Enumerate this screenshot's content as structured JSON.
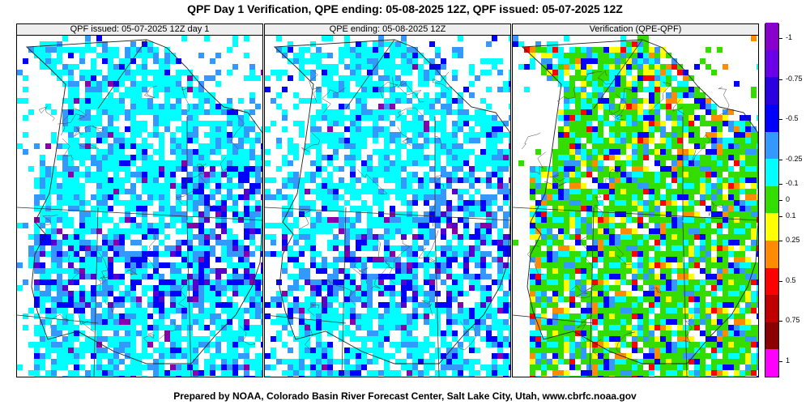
{
  "title": "QPF Day 1 Verification, QPE ending: 05-08-2025 12Z, QPF issued: 05-07-2025 12Z",
  "footer": "Prepared by NOAA, Colorado Basin River Forecast Center, Salt Lake City, Utah, www.cbrfc.noaa.gov",
  "panels": [
    {
      "id": "qpf",
      "title": "QPF issued: 05-07-2025 12Z day 1",
      "product": "qpf",
      "seed": 11
    },
    {
      "id": "qpe",
      "title": "QPE ending: 05-08-2025 12Z",
      "product": "qpe",
      "seed": 23
    },
    {
      "id": "diff",
      "title": "Verification (QPE-QPF)",
      "product": "diff",
      "seed": 37
    }
  ],
  "legend": {
    "colors": [
      "#ff00ff",
      "#8b0000",
      "#c00000",
      "#ff0000",
      "#ff8c00",
      "#ffff00",
      "#33dd00",
      "#00ffff",
      "#3399ff",
      "#0000ff",
      "#2a00e0",
      "#6a00e8",
      "#8800cc"
    ],
    "labels": [
      "1",
      "0.75",
      "0.5",
      "0.25",
      "0.1",
      "0",
      "-0.1",
      "-0.25",
      "-0.5",
      "-0.75",
      "-1"
    ]
  },
  "precip_colors": [
    "#00ffff",
    "#3399ff",
    "#0000ff",
    "#5500cc",
    "#8800aa"
  ],
  "diff_colors": [
    "#ff0000",
    "#ff8c00",
    "#ffff00",
    "#33dd00",
    "#00ffff",
    "#3399ff",
    "#0000ff"
  ]
}
